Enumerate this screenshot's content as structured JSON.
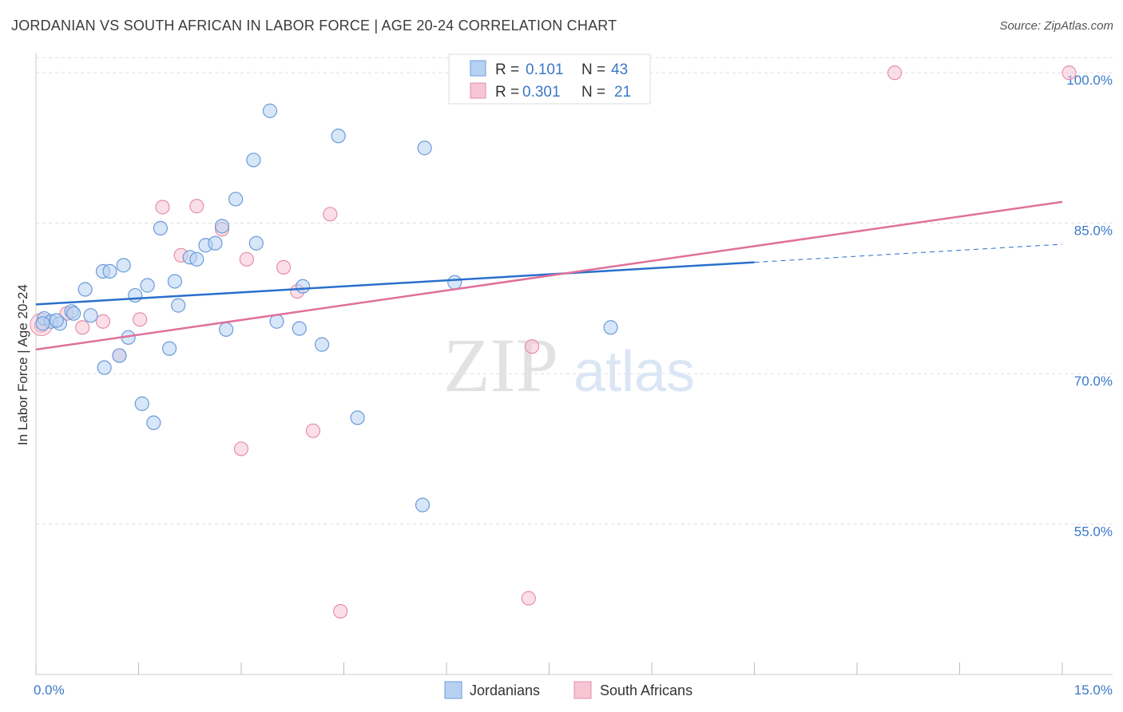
{
  "header": {
    "title": "JORDANIAN VS SOUTH AFRICAN IN LABOR FORCE | AGE 20-24 CORRELATION CHART",
    "source": "Source: ZipAtlas.com"
  },
  "colors": {
    "jordanian_fill": "#b7d1f2",
    "jordanian_stroke": "#6b9bd8",
    "jordanian_line": "#2a6fcb",
    "south_african_fill": "#f7c5d3",
    "south_african_stroke": "#e58fab",
    "south_african_line": "#e0709a",
    "axis_label": "#3a78c8",
    "grid": "#dddddd"
  },
  "watermark": {
    "zip": "ZIP",
    "atlas": "atlas"
  },
  "legend": {
    "rows": [
      {
        "r_label": "R = ",
        "r_value": "0.101",
        "n_label": "N = ",
        "n_value": "43"
      },
      {
        "r_label": "R = ",
        "r_value": "0.301",
        "n_label": "N = ",
        "n_value": "21"
      }
    ]
  },
  "bottom_legend": [
    "Jordanians",
    "South Africans"
  ],
  "chart_data": {
    "type": "scatter",
    "xlabel": "",
    "ylabel": "In Labor Force | Age 20-24",
    "xlim": [
      0,
      15
    ],
    "ylim": [
      40,
      102
    ],
    "x_tick_labels": [
      {
        "value": 0,
        "label": "0.0%"
      },
      {
        "value": 15,
        "label": "15.0%"
      }
    ],
    "y_tick_labels": [
      {
        "value": 100,
        "label": "100.0%"
      },
      {
        "value": 85,
        "label": "85.0%"
      },
      {
        "value": 70,
        "label": "70.0%"
      },
      {
        "value": 55,
        "label": "55.0%"
      }
    ],
    "grid": true,
    "series": [
      {
        "name": "Jordanians",
        "points": [
          [
            0.12,
            75.5
          ],
          [
            0.22,
            75.2
          ],
          [
            0.35,
            75.0
          ],
          [
            0.52,
            76.2
          ],
          [
            0.55,
            76.0
          ],
          [
            0.8,
            75.8
          ],
          [
            0.72,
            78.4
          ],
          [
            0.98,
            80.2
          ],
          [
            1.08,
            80.2
          ],
          [
            1.28,
            80.8
          ],
          [
            1.0,
            70.6
          ],
          [
            1.22,
            71.8
          ],
          [
            1.35,
            73.6
          ],
          [
            1.45,
            77.8
          ],
          [
            1.63,
            78.8
          ],
          [
            1.55,
            67.0
          ],
          [
            1.72,
            65.1
          ],
          [
            1.82,
            84.5
          ],
          [
            1.95,
            72.5
          ],
          [
            2.03,
            79.2
          ],
          [
            2.08,
            76.8
          ],
          [
            2.25,
            81.6
          ],
          [
            2.35,
            81.4
          ],
          [
            2.48,
            82.8
          ],
          [
            2.62,
            83.0
          ],
          [
            2.72,
            84.7
          ],
          [
            2.78,
            74.4
          ],
          [
            2.92,
            87.4
          ],
          [
            3.18,
            91.3
          ],
          [
            3.22,
            83.0
          ],
          [
            3.42,
            96.2
          ],
          [
            3.52,
            75.2
          ],
          [
            3.85,
            74.5
          ],
          [
            3.9,
            78.7
          ],
          [
            4.18,
            72.9
          ],
          [
            4.42,
            93.7
          ],
          [
            4.7,
            65.6
          ],
          [
            5.65,
            56.9
          ],
          [
            5.68,
            92.5
          ],
          [
            6.12,
            79.1
          ],
          [
            8.4,
            74.6
          ],
          [
            0.1,
            75.0
          ],
          [
            0.3,
            75.3
          ]
        ]
      },
      {
        "name": "South Africans",
        "points": [
          [
            0.08,
            74.8
          ],
          [
            0.45,
            76.0
          ],
          [
            0.68,
            74.6
          ],
          [
            0.98,
            75.2
          ],
          [
            1.22,
            71.8
          ],
          [
            1.52,
            75.4
          ],
          [
            1.85,
            86.6
          ],
          [
            2.12,
            81.8
          ],
          [
            2.35,
            86.7
          ],
          [
            2.72,
            84.4
          ],
          [
            3.08,
            81.4
          ],
          [
            3.0,
            62.5
          ],
          [
            3.62,
            80.6
          ],
          [
            3.82,
            78.2
          ],
          [
            4.05,
            64.3
          ],
          [
            4.3,
            85.9
          ],
          [
            4.45,
            46.3
          ],
          [
            7.25,
            72.7
          ],
          [
            7.2,
            47.6
          ],
          [
            12.55,
            100.0
          ],
          [
            15.1,
            100.0
          ]
        ]
      }
    ],
    "trend_lines": [
      {
        "series": "Jordanians",
        "x0": 0,
        "y0": 76.9,
        "x1": 10.5,
        "y1": 81.1,
        "dashed_to_x": 16.5,
        "dashed_to_y": 83.5
      },
      {
        "series": "South Africans",
        "x0": 0,
        "y0": 72.4,
        "x1": 16.5,
        "y1": 88.6
      }
    ]
  }
}
